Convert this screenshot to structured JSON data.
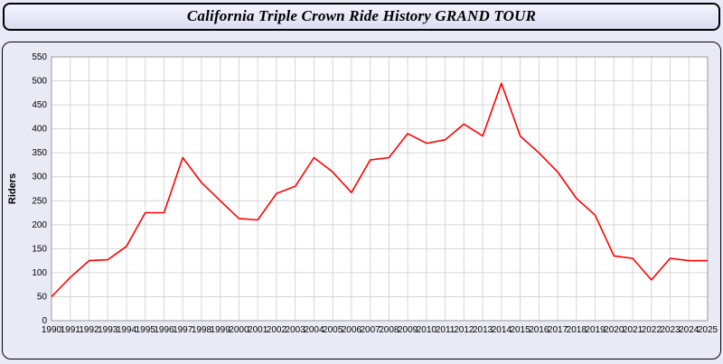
{
  "header": {
    "title": "California Triple Crown Ride History GRAND TOUR"
  },
  "chart_data": {
    "type": "line",
    "title": "California Triple Crown Ride History GRAND TOUR",
    "xlabel": "",
    "ylabel": "Riders",
    "ylim": [
      0,
      550
    ],
    "ytick_step": 50,
    "grid": true,
    "legend_position": "none",
    "line_color": "#ff0000",
    "x": [
      "1990",
      "1991",
      "1992",
      "1993",
      "1994",
      "1995",
      "1996",
      "1997",
      "1998",
      "1999",
      "2000",
      "2001",
      "2002",
      "2003",
      "2004",
      "2005",
      "2006",
      "2007",
      "2008",
      "2009",
      "2010",
      "2011",
      "2012",
      "2013",
      "2014",
      "2015",
      "2016",
      "2017",
      "2018",
      "2019",
      "2020",
      "2021",
      "2022",
      "2023",
      "2024",
      "2025"
    ],
    "series": [
      {
        "name": "Riders",
        "values": [
          50,
          90,
          125,
          127,
          155,
          225,
          225,
          340,
          288,
          250,
          213,
          210,
          265,
          280,
          340,
          310,
          267,
          335,
          340,
          390,
          370,
          377,
          410,
          385,
          495,
          385,
          350,
          310,
          255,
          220,
          135,
          130,
          85,
          130,
          125,
          125
        ]
      }
    ]
  }
}
